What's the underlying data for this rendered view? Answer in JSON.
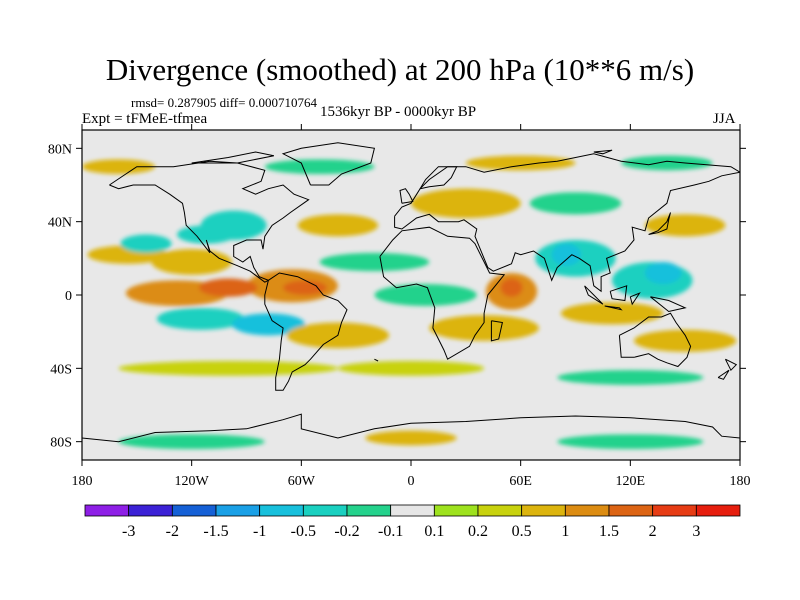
{
  "title": "Divergence (smoothed) at 200 hPa (10**6 m/s)",
  "stats": "rmsd= 0.287905 diff= 0.000710764",
  "experiment": "Expt = tFMeE-tfmea",
  "period": "1536kyr BP - 0000kyr BP",
  "season": "JJA",
  "chart_data": {
    "type": "heatmap",
    "map_projection": "cylindrical-equidistant",
    "lon_range": [
      -180,
      180
    ],
    "lat_range": [
      -90,
      90
    ],
    "lon_ticks": [
      "180",
      "120W",
      "60W",
      "0",
      "60E",
      "120E",
      "180"
    ],
    "lat_ticks": [
      "80N",
      "40N",
      "0",
      "40S",
      "80S"
    ],
    "colorbar": {
      "levels": [
        "-3",
        "-2",
        "-1.5",
        "-1",
        "-0.5",
        "-0.2",
        "-0.1",
        "0.1",
        "0.2",
        "0.5",
        "1",
        "1.5",
        "2",
        "3"
      ],
      "colors": [
        "#8e1fe6",
        "#3c22d6",
        "#1560d6",
        "#1aa0e6",
        "#18c0dc",
        "#1ad0c0",
        "#24d28c",
        "#e6e6e6",
        "#9ee21e",
        "#c8d20e",
        "#dcb40e",
        "#dc8c12",
        "#dc6414",
        "#e63c14",
        "#e61e0e"
      ]
    },
    "field_blobs": [
      {
        "lon": -155,
        "lat": 22,
        "rx": 22,
        "ry": 5,
        "value": 0.5
      },
      {
        "lon": -120,
        "lat": 18,
        "rx": 22,
        "ry": 7,
        "value": 0.5
      },
      {
        "lon": -145,
        "lat": 28,
        "rx": 14,
        "ry": 5,
        "value": -0.5
      },
      {
        "lon": -112,
        "lat": 33,
        "rx": 16,
        "ry": 5,
        "value": -0.5
      },
      {
        "lon": -65,
        "lat": 5,
        "rx": 25,
        "ry": 9,
        "value": 1
      },
      {
        "lon": -128,
        "lat": 1,
        "rx": 28,
        "ry": 7,
        "value": 1
      },
      {
        "lon": -100,
        "lat": 4,
        "rx": 16,
        "ry": 5,
        "value": 1.5
      },
      {
        "lon": -58,
        "lat": 4,
        "rx": 12,
        "ry": 4,
        "value": 1.5
      },
      {
        "lon": -115,
        "lat": -13,
        "rx": 24,
        "ry": 6,
        "value": -0.5
      },
      {
        "lon": -78,
        "lat": -16,
        "rx": 20,
        "ry": 6,
        "value": -1
      },
      {
        "lon": -40,
        "lat": -22,
        "rx": 28,
        "ry": 7,
        "value": 0.5
      },
      {
        "lon": -97,
        "lat": 38,
        "rx": 18,
        "ry": 8,
        "value": -0.5
      },
      {
        "lon": -40,
        "lat": 38,
        "rx": 22,
        "ry": 6,
        "value": 0.5
      },
      {
        "lon": -20,
        "lat": 18,
        "rx": 30,
        "ry": 5,
        "value": -0.2
      },
      {
        "lon": 8,
        "lat": 0,
        "rx": 28,
        "ry": 6,
        "value": -0.2
      },
      {
        "lon": 55,
        "lat": 2,
        "rx": 14,
        "ry": 10,
        "value": 1
      },
      {
        "lon": 55,
        "lat": 4,
        "rx": 6,
        "ry": 5,
        "value": 1.5
      },
      {
        "lon": 40,
        "lat": -18,
        "rx": 30,
        "ry": 7,
        "value": 0.5
      },
      {
        "lon": 90,
        "lat": 20,
        "rx": 22,
        "ry": 10,
        "value": -0.5
      },
      {
        "lon": 85,
        "lat": 22,
        "rx": 8,
        "ry": 6,
        "value": -1
      },
      {
        "lon": 132,
        "lat": 8,
        "rx": 22,
        "ry": 10,
        "value": -0.5
      },
      {
        "lon": 138,
        "lat": 12,
        "rx": 10,
        "ry": 6,
        "value": -1
      },
      {
        "lon": 110,
        "lat": -10,
        "rx": 28,
        "ry": 6,
        "value": 0.5
      },
      {
        "lon": 150,
        "lat": -25,
        "rx": 28,
        "ry": 6,
        "value": 0.5
      },
      {
        "lon": 120,
        "lat": -45,
        "rx": 40,
        "ry": 4,
        "value": -0.2
      },
      {
        "lon": -100,
        "lat": -40,
        "rx": 60,
        "ry": 4,
        "value": 0.2
      },
      {
        "lon": 0,
        "lat": -40,
        "rx": 40,
        "ry": 4,
        "value": 0.2
      },
      {
        "lon": 0,
        "lat": -78,
        "rx": 25,
        "ry": 4,
        "value": 0.5
      },
      {
        "lon": -120,
        "lat": -80,
        "rx": 40,
        "ry": 4,
        "value": -0.2
      },
      {
        "lon": 120,
        "lat": -80,
        "rx": 40,
        "ry": 4,
        "value": -0.2
      },
      {
        "lon": 30,
        "lat": 50,
        "rx": 30,
        "ry": 8,
        "value": 0.5
      },
      {
        "lon": 90,
        "lat": 50,
        "rx": 25,
        "ry": 6,
        "value": -0.2
      },
      {
        "lon": 150,
        "lat": 38,
        "rx": 22,
        "ry": 6,
        "value": 0.5
      },
      {
        "lon": -160,
        "lat": 70,
        "rx": 20,
        "ry": 4,
        "value": 0.5
      },
      {
        "lon": -50,
        "lat": 70,
        "rx": 30,
        "ry": 4,
        "value": -0.2
      },
      {
        "lon": 60,
        "lat": 72,
        "rx": 30,
        "ry": 4,
        "value": 0.5
      },
      {
        "lon": 140,
        "lat": 72,
        "rx": 25,
        "ry": 4,
        "value": -0.2
      }
    ]
  }
}
